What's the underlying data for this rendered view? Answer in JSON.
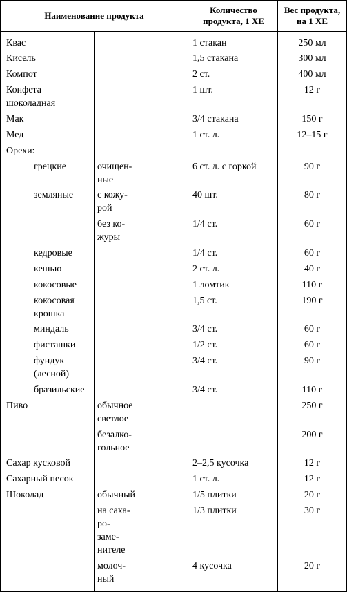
{
  "headers": {
    "name": "Наименование продукта",
    "qty": "Количество продукта, 1 ХЕ",
    "weight": "Вес продукта, на 1 ХЕ"
  },
  "rows": [
    {
      "nameA": "Квас",
      "nameB": "",
      "qty": "1 стакан",
      "weight": "250 мл",
      "indent": 0
    },
    {
      "nameA": "Кисель",
      "nameB": "",
      "qty": "1,5 стакана",
      "weight": "300 мл",
      "indent": 0
    },
    {
      "nameA": "Компот",
      "nameB": "",
      "qty": "2 ст.",
      "weight": "400 мл",
      "indent": 0
    },
    {
      "nameA": "Конфета шоколадная",
      "nameB": "",
      "qty": "1 шт.",
      "weight": "12 г",
      "indent": 0
    },
    {
      "nameA": "Мак",
      "nameB": "",
      "qty": "3/4 стакана",
      "weight": "150 г",
      "indent": 0
    },
    {
      "nameA": "Мед",
      "nameB": "",
      "qty": "1 ст. л.",
      "weight": "12–15 г",
      "indent": 0
    },
    {
      "nameA": "Орехи:",
      "nameB": "",
      "qty": "",
      "weight": "",
      "indent": 0
    },
    {
      "nameA": "грецкие",
      "nameB": "очищен-ные",
      "qty": "6 ст. л. с горкой",
      "weight": "90 г",
      "indent": 1,
      "multi": true
    },
    {
      "nameA": "земляные",
      "nameB": "с кожу-рой",
      "qty": "40 шт.",
      "weight": "80 г",
      "indent": 1,
      "multi": true
    },
    {
      "nameA": "",
      "nameB": "без ко-журы",
      "qty": "1/4 ст.",
      "weight": "60 г",
      "indent": 1,
      "multi": true
    },
    {
      "nameA": "кедровые",
      "nameB": "",
      "qty": "1/4 ст.",
      "weight": "60 г",
      "indent": 1
    },
    {
      "nameA": "кешью",
      "nameB": "",
      "qty": "2 ст. л.",
      "weight": "40 г",
      "indent": 1
    },
    {
      "nameA": "кокосовые",
      "nameB": "",
      "qty": "1 ломтик",
      "weight": "110 г",
      "indent": 1
    },
    {
      "nameA": "кокосовая крошка",
      "nameB": "",
      "qty": "1,5 ст.",
      "weight": "190 г",
      "indent": 1
    },
    {
      "nameA": "миндаль",
      "nameB": "",
      "qty": "3/4 ст.",
      "weight": "60 г",
      "indent": 1
    },
    {
      "nameA": "фисташки",
      "nameB": "",
      "qty": "1/2 ст.",
      "weight": "60 г",
      "indent": 1
    },
    {
      "nameA": "фундук (лесной)",
      "nameB": "",
      "qty": "3/4 ст.",
      "weight": "90 г",
      "indent": 1
    },
    {
      "nameA": "бразильские",
      "nameB": "",
      "qty": "3/4 ст.",
      "weight": "110 г",
      "indent": 1
    },
    {
      "nameA": "Пиво",
      "nameB": "обычное светлое",
      "qty": "",
      "weight": "250 г",
      "indent": 0,
      "multi": true
    },
    {
      "nameA": "",
      "nameB": "безалко-гольное",
      "qty": "",
      "weight": "200 г",
      "indent": 0,
      "multi": true
    },
    {
      "nameA": "Сахар кусковой",
      "nameB": "",
      "qty": "2–2,5 кусочка",
      "weight": "12 г",
      "indent": 0
    },
    {
      "nameA": "Сахарный песок",
      "nameB": "",
      "qty": "1 ст. л.",
      "weight": "12 г",
      "indent": 0
    },
    {
      "nameA": "Шоколад",
      "nameB": "обычный",
      "qty": "1/5 плитки",
      "weight": "20 г",
      "indent": 0
    },
    {
      "nameA": "",
      "nameB": "на саха-ро-заме-нителе",
      "qty": "1/3 плитки",
      "weight": "30 г",
      "indent": 0,
      "multi": true
    },
    {
      "nameA": "",
      "nameB": "молоч-ный",
      "qty": "4 кусочка",
      "weight": "20 г",
      "indent": 0,
      "multi": true
    }
  ]
}
